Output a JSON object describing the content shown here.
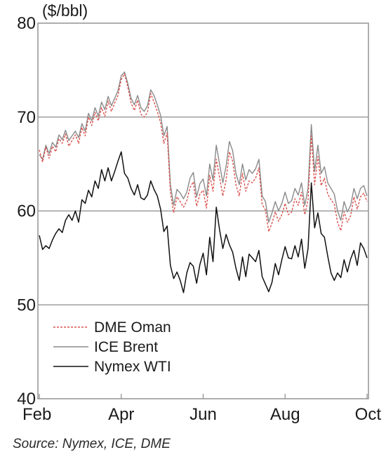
{
  "chart_data": {
    "type": "line",
    "ylabel": "($/bbl)",
    "ylim": [
      40,
      80
    ],
    "yticks": [
      40,
      50,
      60,
      70,
      80
    ],
    "x_tick_labels": [
      "Feb",
      "Apr",
      "Jun",
      "Aug",
      "Oct"
    ],
    "xlim": [
      0,
      100
    ],
    "x_tick_positions": [
      0,
      25,
      50,
      75,
      100
    ],
    "grid": "horizontal",
    "legend_position": "bottom-left",
    "series": [
      {
        "name": "DME Oman",
        "color": "#d9534f",
        "style": "dashed",
        "points": [
          [
            0,
            66.5
          ],
          [
            1,
            65.2
          ],
          [
            2,
            66.8
          ],
          [
            3,
            65.6
          ],
          [
            4,
            66.9
          ],
          [
            5,
            66.3
          ],
          [
            6,
            67.7
          ],
          [
            7,
            67.2
          ],
          [
            8,
            68.2
          ],
          [
            9,
            66.9
          ],
          [
            10,
            67.5
          ],
          [
            11,
            68.1
          ],
          [
            12,
            67.2
          ],
          [
            13,
            68.9
          ],
          [
            14,
            68.0
          ],
          [
            15,
            70.0
          ],
          [
            16,
            69.1
          ],
          [
            17,
            70.5
          ],
          [
            18,
            69.6
          ],
          [
            19,
            71.0
          ],
          [
            20,
            70.1
          ],
          [
            21,
            71.7
          ],
          [
            22,
            70.6
          ],
          [
            23,
            71.5
          ],
          [
            24,
            72.3
          ],
          [
            25,
            74.0
          ],
          [
            26,
            74.6
          ],
          [
            27,
            73.2
          ],
          [
            28,
            71.5
          ],
          [
            29,
            70.7
          ],
          [
            30,
            71.8
          ],
          [
            31,
            70.3
          ],
          [
            32,
            70.0
          ],
          [
            33,
            70.5
          ],
          [
            34,
            72.5
          ],
          [
            35,
            71.6
          ],
          [
            36,
            70.6
          ],
          [
            37,
            69.4
          ],
          [
            38,
            67.2
          ],
          [
            39,
            68.3
          ],
          [
            40,
            62.0
          ],
          [
            41,
            59.8
          ],
          [
            42,
            61.5
          ],
          [
            43,
            61.0
          ],
          [
            44,
            60.4
          ],
          [
            45,
            61.1
          ],
          [
            46,
            62.5
          ],
          [
            47,
            63.1
          ],
          [
            48,
            60.5
          ],
          [
            49,
            61.8
          ],
          [
            50,
            62.2
          ],
          [
            51,
            60.3
          ],
          [
            52,
            63.8
          ],
          [
            53,
            62.1
          ],
          [
            54,
            65.5
          ],
          [
            55,
            63.6
          ],
          [
            56,
            61.6
          ],
          [
            57,
            63.3
          ],
          [
            58,
            66.3
          ],
          [
            59,
            65.3
          ],
          [
            60,
            62.8
          ],
          [
            61,
            61.6
          ],
          [
            62,
            64.0
          ],
          [
            63,
            62.1
          ],
          [
            64,
            63.2
          ],
          [
            65,
            63.0
          ],
          [
            66,
            63.5
          ],
          [
            67,
            64.6
          ],
          [
            68,
            60.7
          ],
          [
            69,
            60.1
          ],
          [
            70,
            57.8
          ],
          [
            71,
            58.7
          ],
          [
            72,
            59.9
          ],
          [
            73,
            58.9
          ],
          [
            74,
            59.6
          ],
          [
            75,
            60.8
          ],
          [
            76,
            59.6
          ],
          [
            77,
            59.9
          ],
          [
            78,
            61.3
          ],
          [
            79,
            60.6
          ],
          [
            80,
            62.0
          ],
          [
            81,
            59.6
          ],
          [
            82,
            61.2
          ],
          [
            83,
            68.0
          ],
          [
            84,
            62.8
          ],
          [
            85,
            65.8
          ],
          [
            86,
            62.7
          ],
          [
            87,
            63.5
          ],
          [
            88,
            61.8
          ],
          [
            89,
            61.2
          ],
          [
            90,
            60.7
          ],
          [
            91,
            58.8
          ],
          [
            92,
            57.9
          ],
          [
            93,
            59.9
          ],
          [
            94,
            58.8
          ],
          [
            95,
            59.5
          ],
          [
            96,
            61.5
          ],
          [
            97,
            60.2
          ],
          [
            98,
            61.5
          ],
          [
            99,
            61.9
          ],
          [
            100,
            61.0
          ]
        ]
      },
      {
        "name": "ICE Brent",
        "color": "#8a8a8a",
        "style": "solid",
        "points": [
          [
            0,
            66.0
          ],
          [
            1,
            65.5
          ],
          [
            2,
            67.0
          ],
          [
            3,
            66.1
          ],
          [
            4,
            67.3
          ],
          [
            5,
            66.8
          ],
          [
            6,
            68.1
          ],
          [
            7,
            67.6
          ],
          [
            8,
            68.6
          ],
          [
            9,
            67.5
          ],
          [
            10,
            68.0
          ],
          [
            11,
            68.5
          ],
          [
            12,
            67.8
          ],
          [
            13,
            69.3
          ],
          [
            14,
            68.5
          ],
          [
            15,
            70.4
          ],
          [
            16,
            69.6
          ],
          [
            17,
            71.0
          ],
          [
            18,
            70.1
          ],
          [
            19,
            71.6
          ],
          [
            20,
            70.8
          ],
          [
            21,
            72.2
          ],
          [
            22,
            71.2
          ],
          [
            23,
            72.0
          ],
          [
            24,
            72.8
          ],
          [
            25,
            74.4
          ],
          [
            26,
            74.8
          ],
          [
            27,
            73.6
          ],
          [
            28,
            72.0
          ],
          [
            29,
            71.3
          ],
          [
            30,
            72.3
          ],
          [
            31,
            71.0
          ],
          [
            32,
            70.6
          ],
          [
            33,
            71.2
          ],
          [
            34,
            72.9
          ],
          [
            35,
            72.3
          ],
          [
            36,
            71.3
          ],
          [
            37,
            70.2
          ],
          [
            38,
            68.0
          ],
          [
            39,
            69.0
          ],
          [
            40,
            62.8
          ],
          [
            41,
            60.6
          ],
          [
            42,
            62.3
          ],
          [
            43,
            61.9
          ],
          [
            44,
            61.3
          ],
          [
            45,
            62.0
          ],
          [
            46,
            63.5
          ],
          [
            47,
            64.1
          ],
          [
            48,
            61.5
          ],
          [
            49,
            62.9
          ],
          [
            50,
            63.4
          ],
          [
            51,
            61.6
          ],
          [
            52,
            65.0
          ],
          [
            53,
            63.3
          ],
          [
            54,
            67.0
          ],
          [
            55,
            65.0
          ],
          [
            56,
            63.0
          ],
          [
            57,
            64.8
          ],
          [
            58,
            67.4
          ],
          [
            59,
            66.4
          ],
          [
            60,
            64.0
          ],
          [
            61,
            62.8
          ],
          [
            62,
            65.0
          ],
          [
            63,
            63.3
          ],
          [
            64,
            64.4
          ],
          [
            65,
            64.0
          ],
          [
            66,
            64.5
          ],
          [
            67,
            65.5
          ],
          [
            68,
            61.6
          ],
          [
            69,
            61.0
          ],
          [
            70,
            58.8
          ],
          [
            71,
            59.8
          ],
          [
            72,
            61.0
          ],
          [
            73,
            60.0
          ],
          [
            74,
            60.8
          ],
          [
            75,
            62.0
          ],
          [
            76,
            60.8
          ],
          [
            77,
            61.1
          ],
          [
            78,
            62.4
          ],
          [
            79,
            61.7
          ],
          [
            80,
            63.0
          ],
          [
            81,
            60.6
          ],
          [
            82,
            62.4
          ],
          [
            83,
            69.2
          ],
          [
            84,
            64.2
          ],
          [
            85,
            67.0
          ],
          [
            86,
            64.0
          ],
          [
            87,
            64.7
          ],
          [
            88,
            63.0
          ],
          [
            89,
            62.4
          ],
          [
            90,
            61.8
          ],
          [
            91,
            60.0
          ],
          [
            92,
            59.0
          ],
          [
            93,
            61.0
          ],
          [
            94,
            59.9
          ],
          [
            95,
            60.6
          ],
          [
            96,
            62.4
          ],
          [
            97,
            61.3
          ],
          [
            98,
            62.4
          ],
          [
            99,
            62.7
          ],
          [
            100,
            61.6
          ]
        ]
      },
      {
        "name": "Nymex WTI",
        "color": "#111111",
        "style": "solid",
        "points": [
          [
            0,
            57.4
          ],
          [
            1,
            55.9
          ],
          [
            2,
            56.3
          ],
          [
            3,
            56.0
          ],
          [
            4,
            56.9
          ],
          [
            5,
            57.6
          ],
          [
            6,
            58.1
          ],
          [
            7,
            57.7
          ],
          [
            8,
            59.0
          ],
          [
            9,
            59.6
          ],
          [
            10,
            59.0
          ],
          [
            11,
            60.0
          ],
          [
            12,
            58.8
          ],
          [
            13,
            61.2
          ],
          [
            14,
            60.8
          ],
          [
            15,
            62.2
          ],
          [
            16,
            61.5
          ],
          [
            17,
            63.2
          ],
          [
            18,
            62.4
          ],
          [
            19,
            64.4
          ],
          [
            20,
            63.2
          ],
          [
            21,
            64.6
          ],
          [
            22,
            63.2
          ],
          [
            23,
            64.2
          ],
          [
            24,
            65.3
          ],
          [
            25,
            66.3
          ],
          [
            26,
            64.0
          ],
          [
            27,
            63.5
          ],
          [
            28,
            62.4
          ],
          [
            29,
            61.7
          ],
          [
            30,
            62.8
          ],
          [
            31,
            61.4
          ],
          [
            32,
            61.2
          ],
          [
            33,
            61.7
          ],
          [
            34,
            63.2
          ],
          [
            35,
            62.3
          ],
          [
            36,
            61.6
          ],
          [
            37,
            60.2
          ],
          [
            38,
            57.8
          ],
          [
            39,
            58.4
          ],
          [
            40,
            54.2
          ],
          [
            41,
            52.8
          ],
          [
            42,
            53.5
          ],
          [
            43,
            52.6
          ],
          [
            44,
            51.3
          ],
          [
            45,
            53.4
          ],
          [
            46,
            54.5
          ],
          [
            47,
            54.1
          ],
          [
            48,
            52.3
          ],
          [
            49,
            54.3
          ],
          [
            50,
            55.5
          ],
          [
            51,
            53.2
          ],
          [
            52,
            57.2
          ],
          [
            53,
            54.6
          ],
          [
            54,
            60.4
          ],
          [
            55,
            58.0
          ],
          [
            56,
            56.0
          ],
          [
            57,
            57.5
          ],
          [
            58,
            56.4
          ],
          [
            59,
            55.6
          ],
          [
            60,
            53.9
          ],
          [
            61,
            52.6
          ],
          [
            62,
            55.1
          ],
          [
            63,
            53.0
          ],
          [
            64,
            55.4
          ],
          [
            65,
            55.0
          ],
          [
            66,
            54.6
          ],
          [
            67,
            55.8
          ],
          [
            68,
            53.0
          ],
          [
            69,
            52.2
          ],
          [
            70,
            51.4
          ],
          [
            71,
            52.4
          ],
          [
            72,
            54.4
          ],
          [
            73,
            53.2
          ],
          [
            74,
            54.8
          ],
          [
            75,
            56.2
          ],
          [
            76,
            55.0
          ],
          [
            77,
            54.9
          ],
          [
            78,
            56.3
          ],
          [
            79,
            55.1
          ],
          [
            80,
            57.0
          ],
          [
            81,
            53.9
          ],
          [
            82,
            56.0
          ],
          [
            83,
            63.0
          ],
          [
            84,
            58.2
          ],
          [
            85,
            59.8
          ],
          [
            86,
            57.6
          ],
          [
            87,
            57.2
          ],
          [
            88,
            55.2
          ],
          [
            89,
            53.4
          ],
          [
            90,
            52.6
          ],
          [
            91,
            53.4
          ],
          [
            92,
            52.9
          ],
          [
            93,
            54.8
          ],
          [
            94,
            53.5
          ],
          [
            95,
            54.9
          ],
          [
            96,
            55.8
          ],
          [
            97,
            54.2
          ],
          [
            98,
            56.6
          ],
          [
            99,
            56.0
          ],
          [
            100,
            55.0
          ]
        ]
      }
    ],
    "source": "Source: Nymex, ICE, DME"
  }
}
